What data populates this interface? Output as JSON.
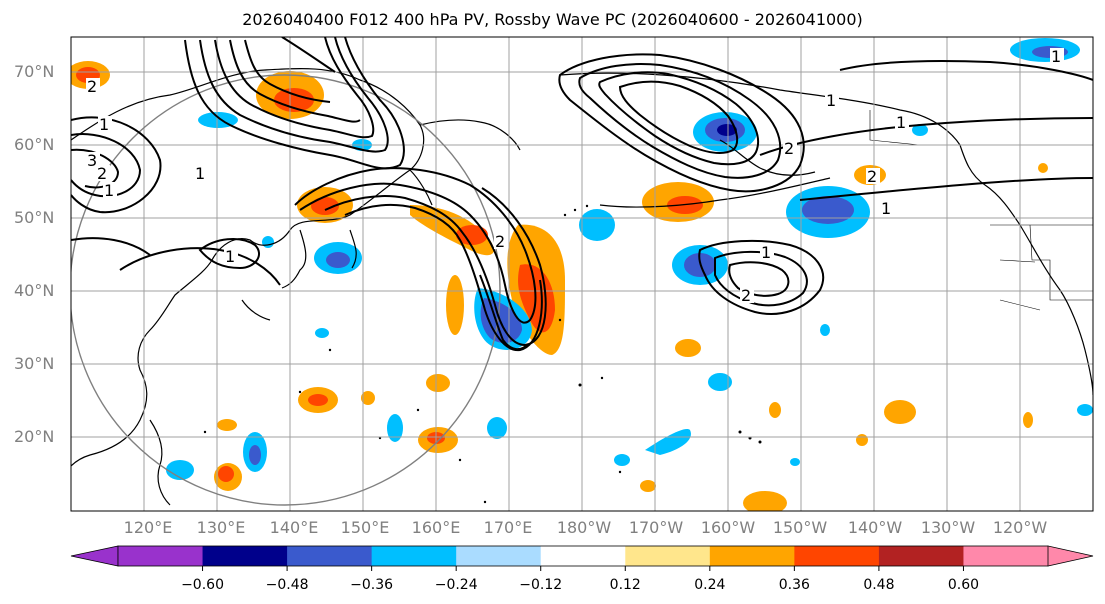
{
  "title": "2026040400 F012 400 hPa PV, Rossby Wave PC (2026040600 - 2026041000)",
  "map": {
    "lat_labels": [
      "70°N",
      "60°N",
      "50°N",
      "40°N",
      "30°N",
      "20°N"
    ],
    "lon_labels": [
      "120°E",
      "130°E",
      "140°E",
      "150°E",
      "160°E",
      "170°E",
      "180°W",
      "170°W",
      "160°W",
      "150°W",
      "140°W",
      "130°W",
      "120°W"
    ],
    "contour_labels": [
      "1",
      "1",
      "2",
      "3",
      "2",
      "1",
      "1",
      "2",
      "1",
      "2",
      "1",
      "2",
      "1",
      "2",
      "1",
      "1"
    ]
  },
  "colorbar": {
    "ticks": [
      "−0.60",
      "−0.48",
      "−0.36",
      "−0.24",
      "−0.12",
      "0.12",
      "0.24",
      "0.36",
      "0.48",
      "0.60"
    ],
    "colors": {
      "under": "#9932cc",
      "bins": [
        "#9932cc",
        "#00008b",
        "#3a5acd",
        "#00bfff",
        "#aadcff",
        "#ffffff",
        "#ffe68c",
        "#ffa500",
        "#ff4500",
        "#b22222",
        "#ff88aa"
      ],
      "over": "#ff88aa"
    }
  },
  "colors": {
    "neg_deep": "#00008b",
    "neg_mid": "#3a5acd",
    "neg_light": "#00bfff",
    "pos_light": "#ffe68c",
    "pos_mid": "#ffa500",
    "pos_strong": "#ff4500",
    "grid": "#a0a0a0"
  }
}
